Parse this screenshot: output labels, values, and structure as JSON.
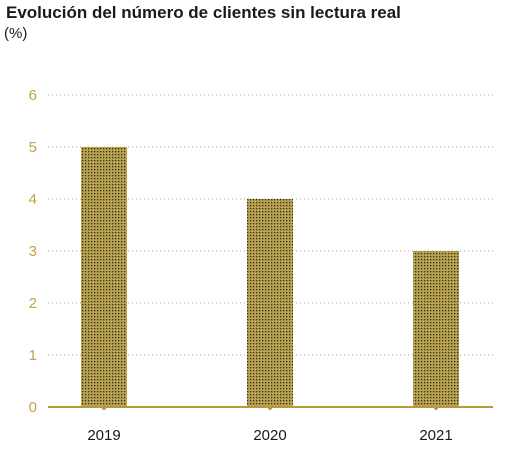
{
  "chart_data": {
    "type": "bar",
    "title": "Evolución del número de clientes sin lectura real",
    "subtitle": "(%)",
    "categories": [
      "2019",
      "2020",
      "2021"
    ],
    "values": [
      5,
      4,
      3
    ],
    "ylim": [
      0,
      6
    ],
    "yticks": [
      "0",
      "1",
      "2",
      "3",
      "4",
      "5",
      "6"
    ],
    "xlabel": "",
    "ylabel": "",
    "grid": true,
    "legend": "none"
  },
  "colors": {
    "bar_fill": "#b8a352",
    "bar_dots": "#3a2e10",
    "axis": "#b89a3c",
    "grid": "#c9b36a",
    "ytick_text": "#c4a24a"
  }
}
